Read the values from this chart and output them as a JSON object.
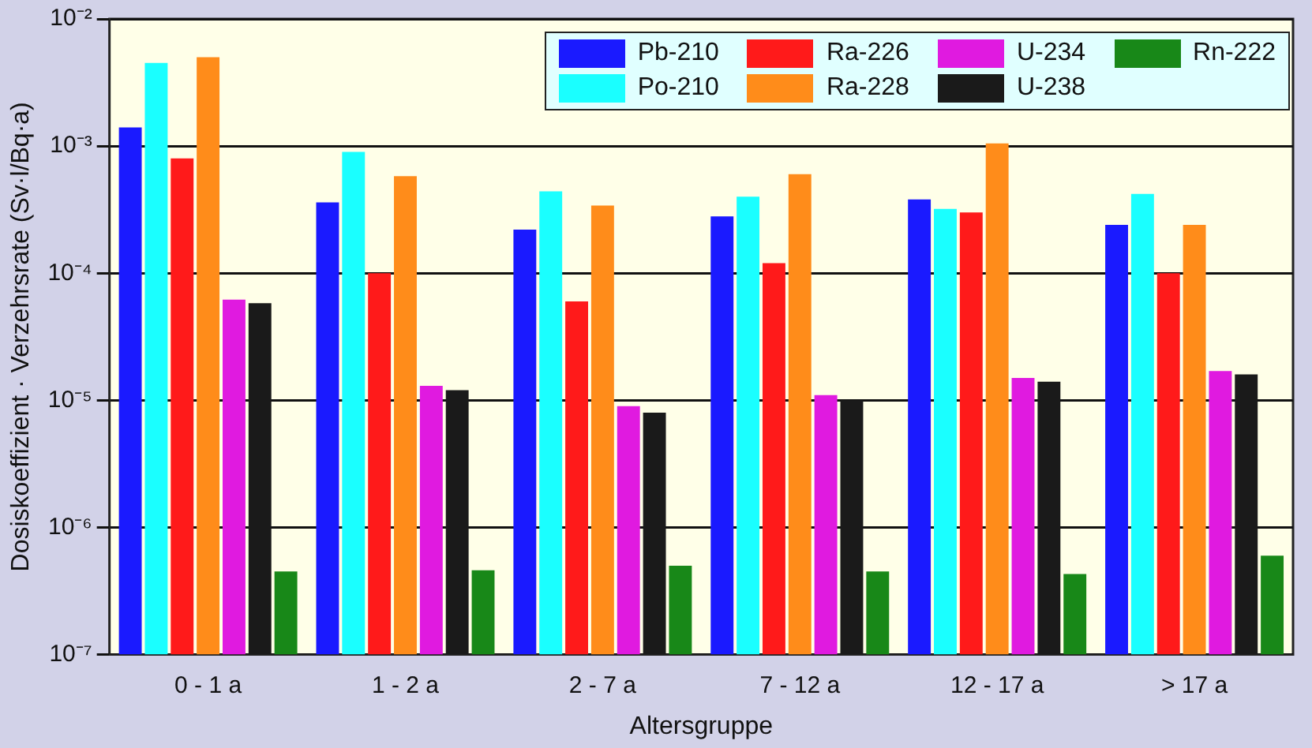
{
  "chart_data": {
    "type": "bar",
    "xlabel": "Altersgruppe",
    "ylabel": "Dosiskoeffizient · Verzehrsrate (Sv·l/Bq·a)",
    "categories": [
      "0 - 1 a",
      "1 - 2 a",
      "2 - 7 a",
      "7 - 12 a",
      "12 - 17 a",
      "> 17 a"
    ],
    "series": [
      {
        "name": "Pb-210",
        "color": "#1a1aff",
        "values": [
          0.0014,
          0.00036,
          0.00022,
          0.00028,
          0.00038,
          0.00024
        ]
      },
      {
        "name": "Po-210",
        "color": "#1affff",
        "values": [
          0.0045,
          0.0009,
          0.00044,
          0.0004,
          0.00032,
          0.00042
        ]
      },
      {
        "name": "Ra-226",
        "color": "#ff1a1a",
        "values": [
          0.0008,
          0.0001,
          6e-05,
          0.00012,
          0.0003,
          0.0001
        ]
      },
      {
        "name": "Ra-228",
        "color": "#ff8c1a",
        "values": [
          0.005,
          0.00058,
          0.00034,
          0.0006,
          0.00105,
          0.00024
        ]
      },
      {
        "name": "U-234",
        "color": "#e01ae0",
        "values": [
          6.2e-05,
          1.3e-05,
          9e-06,
          1.1e-05,
          1.5e-05,
          1.7e-05
        ]
      },
      {
        "name": "U-238",
        "color": "#1a1a1a",
        "values": [
          5.8e-05,
          1.2e-05,
          8e-06,
          1e-05,
          1.4e-05,
          1.6e-05
        ]
      },
      {
        "name": "Rn-222",
        "color": "#188818",
        "values": [
          4.5e-07,
          4.6e-07,
          5e-07,
          4.5e-07,
          4.3e-07,
          6e-07
        ]
      }
    ],
    "log": true,
    "ylim": [
      1e-07,
      0.01
    ],
    "yticks": [
      {
        "value": 1e-07,
        "label": "10⁻⁷"
      },
      {
        "value": 1e-06,
        "label": "10⁻⁶"
      },
      {
        "value": 1e-05,
        "label": "10⁻⁵"
      },
      {
        "value": 0.0001,
        "label": "10⁻⁴"
      },
      {
        "value": 0.001,
        "label": "10⁻³"
      },
      {
        "value": 0.01,
        "label": "10⁻²"
      }
    ],
    "grid": "y",
    "legend": "top right"
  }
}
